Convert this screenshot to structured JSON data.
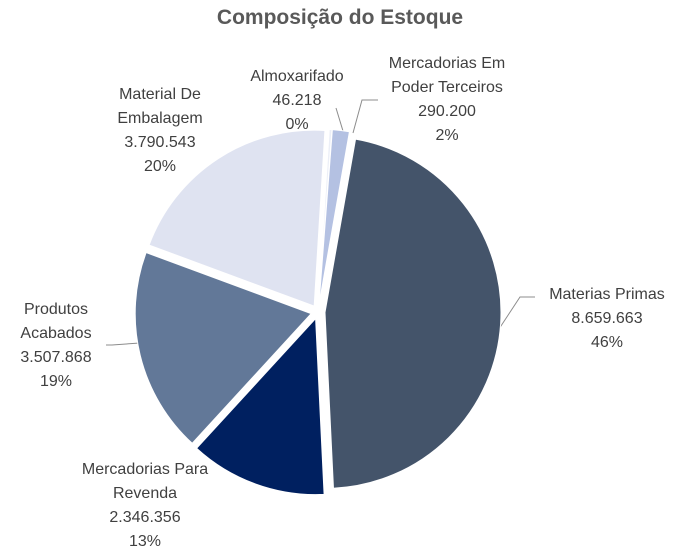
{
  "chart_data": {
    "type": "pie",
    "title": "Composição do Estoque",
    "categories": [
      "Materias Primas",
      "Mercadorias Para Revenda",
      "Produtos Acabados",
      "Material De Embalagem",
      "Almoxarifado",
      "Mercadorias Em Poder Terceiros"
    ],
    "values": [
      8659663,
      2346356,
      3507868,
      3790543,
      46218,
      290200
    ],
    "value_labels": [
      "8.659.663",
      "2.346.356",
      "3.507.868",
      "3.790.543",
      "46.218",
      "290.200"
    ],
    "percent_labels": [
      "46%",
      "13%",
      "19%",
      "20%",
      "0%",
      "2%"
    ],
    "colors": [
      "#44546a",
      "#002060",
      "#627898",
      "#dfe3f1",
      "#eceff7",
      "#b4c1e2"
    ]
  }
}
